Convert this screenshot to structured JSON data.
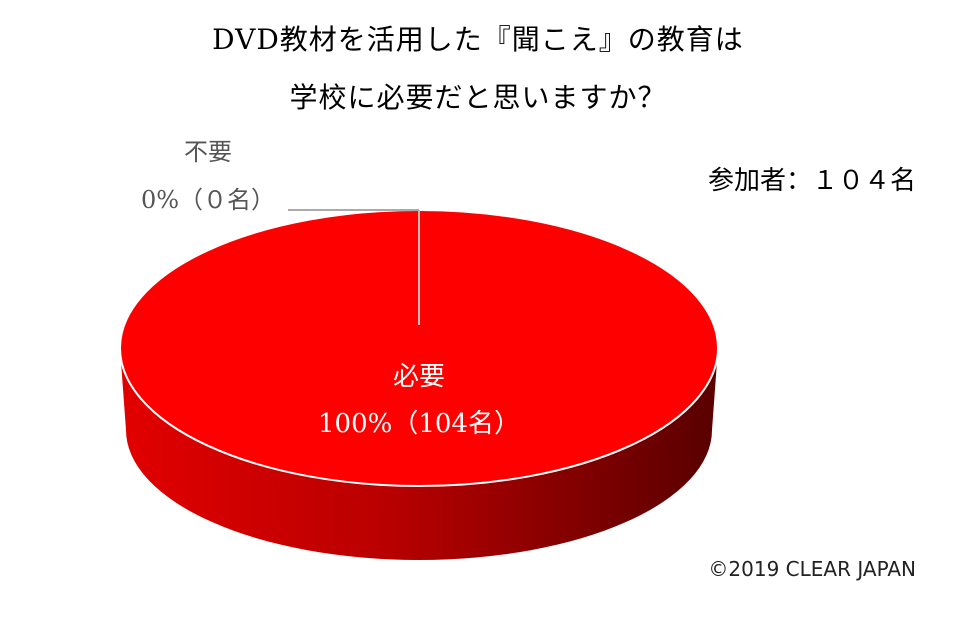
{
  "title_line1": "DVD教材を活用した『聞こえ』の教育は",
  "title_line2": "学校に必要だと思いますか？",
  "participants": "参加者：１０４名",
  "copyright": "©2019 CLEAR JAPAN",
  "chart_data": {
    "type": "pie",
    "title": "DVD教材を活用した『聞こえ』の教育は学校に必要だと思いますか？",
    "slices": [
      {
        "label": "必要",
        "percent_label": "100%（104名）",
        "value": 104,
        "percent": 100,
        "color": "#ff0000"
      },
      {
        "label": "不要",
        "percent_label": "0%（０名）",
        "value": 0,
        "percent": 0,
        "color": "#ffffff"
      }
    ],
    "total": 104
  }
}
